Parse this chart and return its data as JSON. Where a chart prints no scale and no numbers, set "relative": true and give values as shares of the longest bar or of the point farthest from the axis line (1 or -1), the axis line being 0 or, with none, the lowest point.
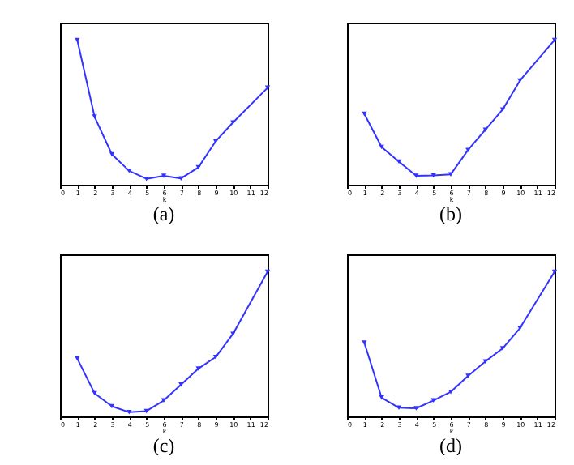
{
  "chart_data": [
    {
      "type": "line",
      "title": "(a)",
      "xlabel": "k",
      "relative": true,
      "x": [
        1,
        2,
        3,
        4,
        5,
        6,
        7,
        8,
        9,
        10,
        12
      ],
      "xlim": [
        0,
        12
      ],
      "xticks": [
        0,
        1,
        2,
        3,
        4,
        5,
        6,
        7,
        8,
        9,
        10,
        11,
        12
      ],
      "marker": "triangle",
      "line_style": "solid",
      "grid": false,
      "legend": false,
      "series": [
        {
          "color": "#3333ff",
          "values": [
            1,
            0.47,
            0.21,
            0.096,
            0.041,
            0.061,
            0.044,
            0.12,
            0.3,
            0.43,
            0.67
          ]
        }
      ]
    },
    {
      "type": "line",
      "title": "(b)",
      "xlabel": "k",
      "relative": true,
      "x": [
        1,
        2,
        3,
        4,
        5,
        6,
        7,
        8,
        9,
        10,
        12
      ],
      "xlim": [
        0,
        12
      ],
      "xticks": [
        0,
        1,
        2,
        3,
        4,
        5,
        6,
        7,
        8,
        9,
        10,
        11,
        12
      ],
      "marker": "triangle",
      "line_style": "solid",
      "grid": false,
      "legend": false,
      "series": [
        {
          "color": "#3333ff",
          "values": [
            0.49,
            0.26,
            0.16,
            0.062,
            0.065,
            0.072,
            0.24,
            0.38,
            0.52,
            0.72,
            1
          ]
        }
      ]
    },
    {
      "type": "line",
      "title": "(c)",
      "xlabel": "k",
      "relative": true,
      "x": [
        1,
        2,
        3,
        4,
        5,
        6,
        7,
        8,
        9,
        10,
        12
      ],
      "xlim": [
        0,
        12
      ],
      "xticks": [
        0,
        1,
        2,
        3,
        4,
        5,
        6,
        7,
        8,
        9,
        10,
        11,
        12
      ],
      "marker": "triangle",
      "line_style": "solid",
      "grid": false,
      "legend": false,
      "series": [
        {
          "color": "#3333ff",
          "values": [
            0.4,
            0.16,
            0.07,
            0.029,
            0.037,
            0.11,
            0.22,
            0.33,
            0.41,
            0.57,
            1
          ]
        }
      ]
    },
    {
      "type": "line",
      "title": "(d)",
      "xlabel": "k",
      "relative": true,
      "x": [
        1,
        2,
        3,
        4,
        5,
        6,
        7,
        8,
        9,
        10,
        12
      ],
      "xlim": [
        0,
        12
      ],
      "xticks": [
        0,
        1,
        2,
        3,
        4,
        5,
        6,
        7,
        8,
        9,
        10,
        11,
        12
      ],
      "marker": "triangle",
      "line_style": "solid",
      "grid": false,
      "legend": false,
      "series": [
        {
          "color": "#3333ff",
          "values": [
            0.51,
            0.13,
            0.06,
            0.056,
            0.11,
            0.17,
            0.28,
            0.38,
            0.47,
            0.61,
            1
          ]
        }
      ]
    }
  ]
}
